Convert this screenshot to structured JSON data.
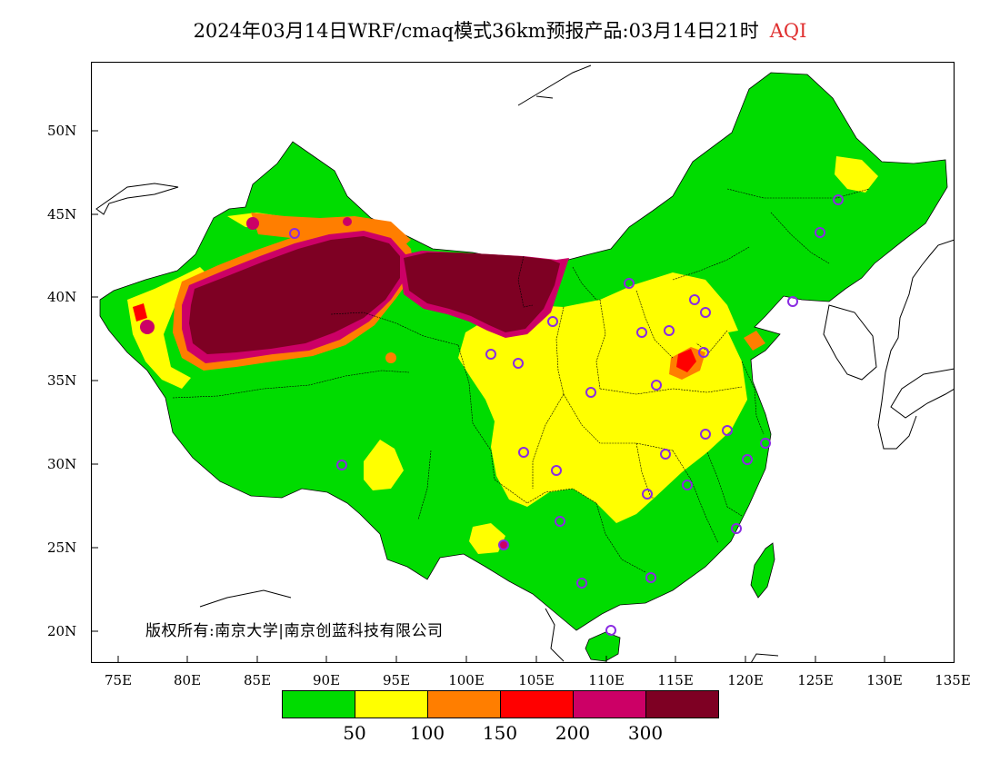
{
  "title": {
    "text": "2024年03月14日WRF/cmaq模式36km预报产品:03月14日21时",
    "variable": "AQI"
  },
  "axes": {
    "lat_labels": [
      "50N",
      "45N",
      "40N",
      "35N",
      "30N",
      "25N",
      "20N"
    ],
    "lon_labels": [
      "75E",
      "80E",
      "85E",
      "90E",
      "95E",
      "100E",
      "105E",
      "110E",
      "115E",
      "120E",
      "125E",
      "130E",
      "135E"
    ]
  },
  "copyright": "版权所有:南京大学|南京创蓝科技有限公司",
  "legend": {
    "colors": [
      "#00dc00",
      "#ffff00",
      "#ff7e00",
      "#ff0000",
      "#cc0066",
      "#7e0023"
    ],
    "labels": [
      "50",
      "100",
      "150",
      "200",
      "300"
    ]
  },
  "colors": {
    "land_green": "#00dc00",
    "yellow": "#ffff00",
    "orange": "#ff7e00",
    "red": "#ff0000",
    "purple": "#cc0066",
    "maroon": "#7e0023",
    "station_ring": "#8a2be2"
  }
}
